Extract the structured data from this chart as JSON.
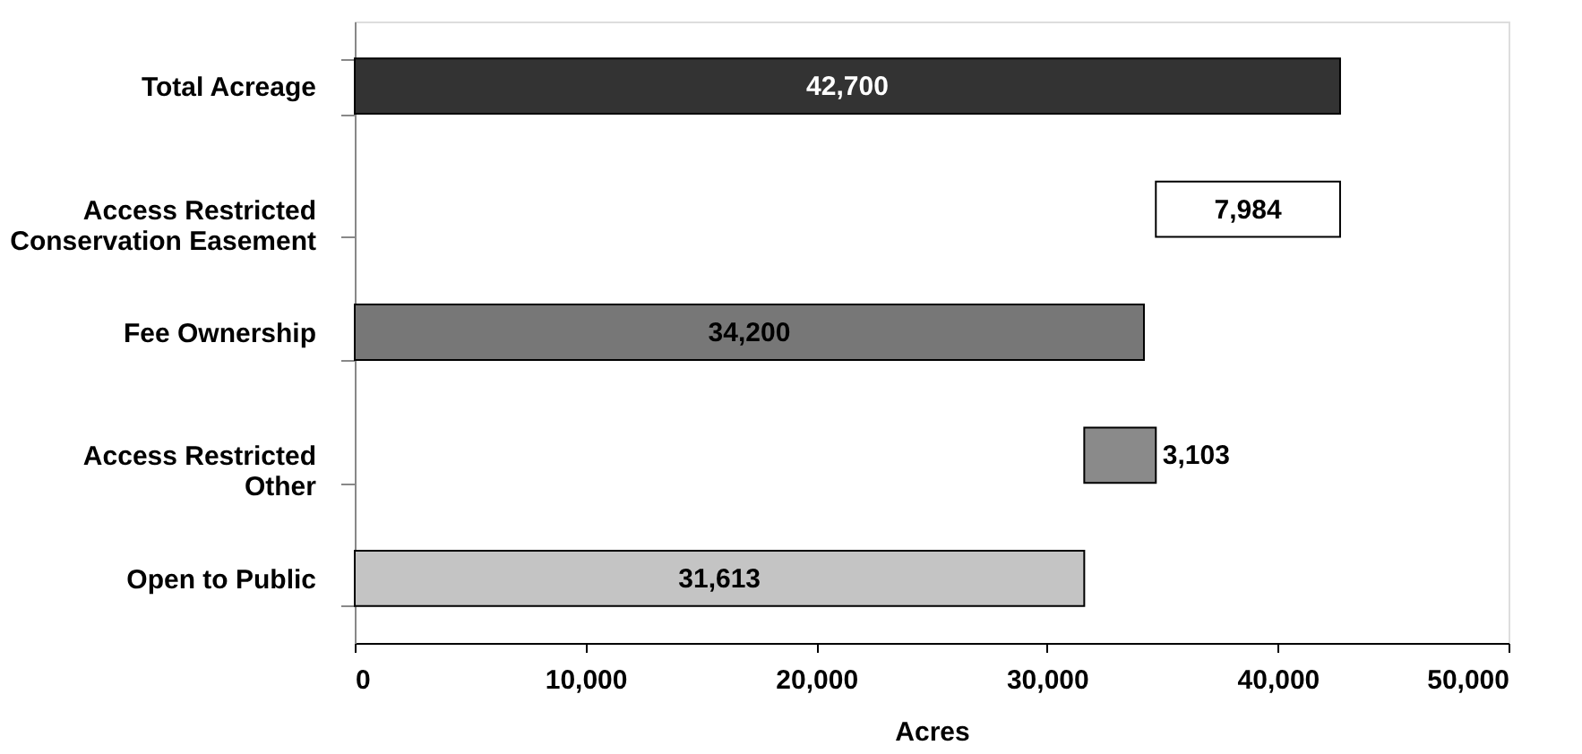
{
  "chart_data": {
    "type": "bar",
    "orientation": "horizontal",
    "xlabel": "Acres",
    "categories": [
      "Total Acreage",
      "Access Restricted Conservation Easement",
      "Fee Ownership",
      "Access Restricted Other",
      "Open to Public"
    ],
    "values": [
      42700,
      7984,
      34200,
      3103,
      31613
    ],
    "base": [
      0,
      34716,
      0,
      31613,
      0
    ],
    "colors": [
      "#333333",
      "#ffffff",
      "#777777",
      "#8a8a8a",
      "#c4c4c4"
    ],
    "value_labels": [
      "42,700",
      "7,984",
      "34,200",
      "3,103",
      "31,613"
    ],
    "xlim": [
      0,
      50000
    ],
    "xticks": [
      0,
      {
        "value": 10000,
        "label": "10,000"
      },
      {
        "value": 20000,
        "label": "20,000"
      },
      {
        "value": 30000,
        "label": "30,000"
      },
      {
        "value": 40000,
        "label": "40,000"
      },
      {
        "value": 50000,
        "label": "50,000"
      }
    ],
    "grid": false
  }
}
